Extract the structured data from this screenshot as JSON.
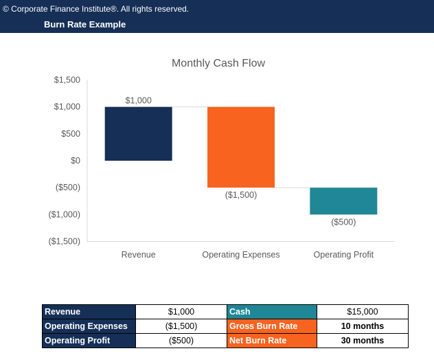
{
  "header": {
    "copyright": "© Corporate Finance Institute®. All rights reserved.",
    "title": "Burn Rate Example"
  },
  "colors": {
    "navy": "#152f57",
    "orange": "#f8631f",
    "teal": "#1f8795"
  },
  "chart_data": {
    "type": "waterfall",
    "title": "Monthly Cash Flow",
    "categories": [
      "Revenue",
      "Operating Expenses",
      "Operating Profit"
    ],
    "bars": [
      {
        "category": "Revenue",
        "start": 0,
        "end": 1000,
        "label": "$1,000",
        "color": "#152f57"
      },
      {
        "category": "Operating Expenses",
        "start": 1000,
        "end": -500,
        "label": "($1,500)",
        "color": "#f8631f"
      },
      {
        "category": "Operating Profit",
        "start": -500,
        "end": -1000,
        "label": "($500)",
        "color": "#1f8795"
      }
    ],
    "ylim": [
      -1500,
      1500
    ],
    "yticks": [
      1500,
      1000,
      500,
      0,
      -500,
      -1000,
      -1500
    ],
    "ytick_labels": [
      "$1,500",
      "$1,000",
      "$500",
      "$0",
      "($500)",
      "($1,000)",
      "($1,500)"
    ],
    "grid": false,
    "legend": "none"
  },
  "table": {
    "rows": [
      {
        "label": "Revenue",
        "value": "$1,000",
        "label2": "Cash",
        "value2": "$15,000",
        "color2": "#1f8795"
      },
      {
        "label": "Operating Expenses",
        "value": "($1,500)",
        "label2": "Gross Burn Rate",
        "value2": "10 months",
        "color2": "#f8631f"
      },
      {
        "label": "Operating Profit",
        "value": "($500)",
        "label2": "Net Burn Rate",
        "value2": "30 months",
        "color2": "#f8631f"
      }
    ]
  }
}
